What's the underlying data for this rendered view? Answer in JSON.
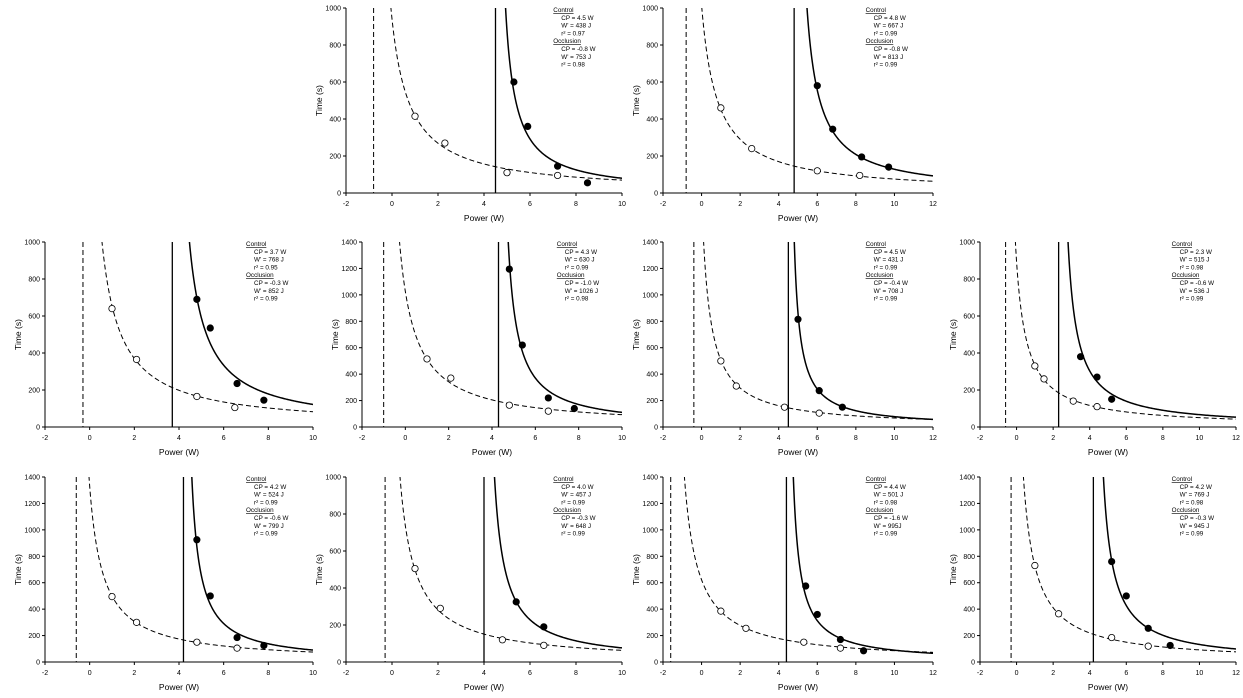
{
  "chart_data": [
    {
      "type": "scatter",
      "xlabel": "Power (W)",
      "ylabel": "Time (s)",
      "xlim": [
        -2,
        10
      ],
      "ylim": [
        0,
        1000
      ],
      "xticks": [
        -2,
        0,
        2,
        4,
        6,
        8,
        10
      ],
      "yticks": [
        0,
        200,
        400,
        600,
        800,
        1000
      ],
      "annotation": {
        "control_title": "Control",
        "control": [
          "CP = 4.5 W",
          "W' = 438 J",
          "r² = 0.97"
        ],
        "occlusion_title": "Occlusion",
        "occlusion": [
          "CP = -0.8 W",
          "W' = 753 J",
          "r² = 0.98"
        ]
      },
      "series": [
        {
          "name": "Control",
          "style": "filled",
          "fit": {
            "cp": 4.5,
            "w": 438
          },
          "x": [
            5.3,
            5.9,
            7.2,
            8.5
          ],
          "y": [
            600,
            360,
            145,
            55
          ]
        },
        {
          "name": "Occlusion",
          "style": "open",
          "fit": {
            "cp": -0.8,
            "w": 753
          },
          "x": [
            1.0,
            2.3,
            5.0,
            7.2
          ],
          "y": [
            415,
            270,
            110,
            95
          ]
        }
      ]
    },
    {
      "type": "scatter",
      "xlabel": "Power (W)",
      "ylabel": "Time (s)",
      "xlim": [
        -2,
        12
      ],
      "ylim": [
        0,
        1000
      ],
      "xticks": [
        -2,
        0,
        2,
        4,
        6,
        8,
        10,
        12
      ],
      "yticks": [
        0,
        200,
        400,
        600,
        800,
        1000
      ],
      "annotation": {
        "control_title": "Control",
        "control": [
          "CP = 4.8 W",
          "W' = 667 J",
          "r² = 0.99"
        ],
        "occlusion_title": "Occlusion",
        "occlusion": [
          "CP = -0.8 W",
          "W' = 813 J",
          "r² = 0.99"
        ]
      },
      "series": [
        {
          "name": "Control",
          "style": "filled",
          "fit": {
            "cp": 4.8,
            "w": 667
          },
          "x": [
            6.0,
            6.8,
            8.3,
            9.7
          ],
          "y": [
            580,
            345,
            195,
            140
          ]
        },
        {
          "name": "Occlusion",
          "style": "open",
          "fit": {
            "cp": -0.8,
            "w": 813
          },
          "x": [
            1.0,
            2.6,
            6.0,
            8.2
          ],
          "y": [
            460,
            240,
            120,
            95
          ]
        }
      ]
    },
    {
      "type": "scatter",
      "xlabel": "Power (W)",
      "ylabel": "Time (s)",
      "xlim": [
        -2,
        10
      ],
      "ylim": [
        0,
        1000
      ],
      "xticks": [
        -2,
        0,
        2,
        4,
        6,
        8,
        10
      ],
      "yticks": [
        0,
        200,
        400,
        600,
        800,
        1000
      ],
      "annotation": {
        "control_title": "Control",
        "control": [
          "CP = 3.7 W",
          "W' = 768 J",
          "r² = 0.95"
        ],
        "occlusion_title": "Occlusion",
        "occlusion": [
          "CP = -0.3 W",
          "W' = 852 J",
          "r² = 0.99"
        ]
      },
      "series": [
        {
          "name": "Control",
          "style": "filled",
          "fit": {
            "cp": 3.7,
            "w": 768
          },
          "x": [
            4.8,
            5.4,
            6.6,
            7.8
          ],
          "y": [
            690,
            535,
            235,
            145
          ]
        },
        {
          "name": "Occlusion",
          "style": "open",
          "fit": {
            "cp": -0.3,
            "w": 852
          },
          "x": [
            1.0,
            2.1,
            4.8,
            6.5
          ],
          "y": [
            640,
            365,
            165,
            105
          ]
        }
      ]
    },
    {
      "type": "scatter",
      "xlabel": "Power (W)",
      "ylabel": "Time (s)",
      "xlim": [
        -2,
        10
      ],
      "ylim": [
        0,
        1400
      ],
      "xticks": [
        -2,
        0,
        2,
        4,
        6,
        8,
        10
      ],
      "yticks": [
        0,
        200,
        400,
        600,
        800,
        1000,
        1200,
        1400
      ],
      "annotation": {
        "control_title": "Control",
        "control": [
          "CP = 4.3 W",
          "W' = 630 J",
          "r² = 0.99"
        ],
        "occlusion_title": "Occlusion",
        "occlusion": [
          "CP = -1.0 W",
          "W' = 1026 J",
          "r² = 0.98"
        ]
      },
      "series": [
        {
          "name": "Control",
          "style": "filled",
          "fit": {
            "cp": 4.3,
            "w": 630
          },
          "x": [
            4.8,
            5.4,
            6.6,
            7.8
          ],
          "y": [
            1195,
            620,
            220,
            140
          ]
        },
        {
          "name": "Occlusion",
          "style": "open",
          "fit": {
            "cp": -1.0,
            "w": 1026
          },
          "x": [
            1.0,
            2.1,
            4.8,
            6.6
          ],
          "y": [
            515,
            370,
            165,
            120
          ]
        }
      ]
    },
    {
      "type": "scatter",
      "xlabel": "Power (W)",
      "ylabel": "Time (s)",
      "xlim": [
        -2,
        12
      ],
      "ylim": [
        0,
        1400
      ],
      "xticks": [
        -2,
        0,
        2,
        4,
        6,
        8,
        10,
        12
      ],
      "yticks": [
        0,
        200,
        400,
        600,
        800,
        1000,
        1200,
        1400
      ],
      "annotation": {
        "control_title": "Control",
        "control": [
          "CP = 4.5 W",
          "W' = 431 J",
          "r² = 0.99"
        ],
        "occlusion_title": "Occlusion",
        "occlusion": [
          "CP = -0.4 W",
          "W' = 708 J",
          "r² = 0.99"
        ]
      },
      "series": [
        {
          "name": "Control",
          "style": "filled",
          "fit": {
            "cp": 4.5,
            "w": 431
          },
          "x": [
            5.0,
            6.1,
            7.3
          ],
          "y": [
            815,
            275,
            150
          ]
        },
        {
          "name": "Occlusion",
          "style": "open",
          "fit": {
            "cp": -0.4,
            "w": 708
          },
          "x": [
            1.0,
            1.8,
            4.3,
            6.1
          ],
          "y": [
            500,
            310,
            150,
            105
          ]
        }
      ]
    },
    {
      "type": "scatter",
      "xlabel": "Power (W)",
      "ylabel": "Time (s)",
      "xlim": [
        -2,
        12
      ],
      "ylim": [
        0,
        1000
      ],
      "xticks": [
        -2,
        0,
        2,
        4,
        6,
        8,
        10,
        12
      ],
      "yticks": [
        0,
        200,
        400,
        600,
        800,
        1000
      ],
      "annotation": {
        "control_title": "Control",
        "control": [
          "CP = 2.3 W",
          "W' = 515 J",
          "r² = 0.98"
        ],
        "occlusion_title": "Occlusion",
        "occlusion": [
          "CP = -0.6 W",
          "W' = 536 J",
          "r² = 0.99"
        ]
      },
      "series": [
        {
          "name": "Control",
          "style": "filled",
          "fit": {
            "cp": 2.3,
            "w": 515
          },
          "x": [
            3.5,
            4.4,
            5.2
          ],
          "y": [
            380,
            270,
            150
          ]
        },
        {
          "name": "Occlusion",
          "style": "open",
          "fit": {
            "cp": -0.6,
            "w": 536
          },
          "x": [
            1.0,
            1.5,
            3.1,
            4.4
          ],
          "y": [
            330,
            260,
            140,
            110
          ]
        }
      ]
    },
    {
      "type": "scatter",
      "xlabel": "Power (W)",
      "ylabel": "Time (s)",
      "xlim": [
        -2,
        10
      ],
      "ylim": [
        0,
        1400
      ],
      "xticks": [
        -2,
        0,
        2,
        4,
        6,
        8,
        10
      ],
      "yticks": [
        0,
        200,
        400,
        600,
        800,
        1000,
        1200,
        1400
      ],
      "annotation": {
        "control_title": "Control",
        "control": [
          "CP = 4.2 W",
          "W' = 524 J",
          "r² = 0.99"
        ],
        "occlusion_title": "Occlusion",
        "occlusion": [
          "CP = -0.6 W",
          "W' = 799 J",
          "r² = 0.99"
        ]
      },
      "series": [
        {
          "name": "Control",
          "style": "filled",
          "fit": {
            "cp": 4.2,
            "w": 524
          },
          "x": [
            4.8,
            5.4,
            6.6,
            7.8
          ],
          "y": [
            925,
            500,
            185,
            125
          ]
        },
        {
          "name": "Occlusion",
          "style": "open",
          "fit": {
            "cp": -0.6,
            "w": 799
          },
          "x": [
            1.0,
            2.1,
            4.8,
            6.6
          ],
          "y": [
            495,
            300,
            150,
            105
          ]
        }
      ]
    },
    {
      "type": "scatter",
      "xlabel": "Power (W)",
      "ylabel": "Time (s)",
      "xlim": [
        -2,
        10
      ],
      "ylim": [
        0,
        1000
      ],
      "xticks": [
        -2,
        0,
        2,
        4,
        6,
        8,
        10
      ],
      "yticks": [
        0,
        200,
        400,
        600,
        800,
        1000
      ],
      "annotation": {
        "control_title": "Control",
        "control": [
          "CP = 4.0 W",
          "W' = 457 J",
          "r² = 0.99"
        ],
        "occlusion_title": "Occlusion",
        "occlusion": [
          "CP = -0.3 W",
          "W' = 648 J",
          "r² = 0.99"
        ]
      },
      "series": [
        {
          "name": "Control",
          "style": "filled",
          "fit": {
            "cp": 4.0,
            "w": 457
          },
          "x": [
            5.4,
            6.6
          ],
          "y": [
            325,
            190
          ]
        },
        {
          "name": "Occlusion",
          "style": "open",
          "fit": {
            "cp": -0.3,
            "w": 648
          },
          "x": [
            1.0,
            2.1,
            4.8,
            6.6
          ],
          "y": [
            505,
            290,
            120,
            90
          ]
        }
      ]
    },
    {
      "type": "scatter",
      "xlabel": "Power (W)",
      "ylabel": "Time (s)",
      "xlim": [
        -2,
        12
      ],
      "ylim": [
        0,
        1400
      ],
      "xticks": [
        -2,
        0,
        2,
        4,
        6,
        8,
        10,
        12
      ],
      "yticks": [
        0,
        200,
        400,
        600,
        800,
        1000,
        1200,
        1400
      ],
      "annotation": {
        "control_title": "Control",
        "control": [
          "CP = 4.4 W",
          "W' = 501 J",
          "r² = 0.98"
        ],
        "occlusion_title": "Occlusion",
        "occlusion": [
          "CP = -1.6 W",
          "W' = 995J",
          "r² = 0.99"
        ]
      },
      "series": [
        {
          "name": "Control",
          "style": "filled",
          "fit": {
            "cp": 4.4,
            "w": 501
          },
          "x": [
            5.4,
            6.0,
            7.2,
            8.4
          ],
          "y": [
            575,
            360,
            170,
            85
          ]
        },
        {
          "name": "Occlusion",
          "style": "open",
          "fit": {
            "cp": -1.6,
            "w": 995
          },
          "x": [
            1.0,
            2.3,
            5.3,
            7.2
          ],
          "y": [
            385,
            255,
            150,
            105
          ]
        }
      ]
    },
    {
      "type": "scatter",
      "xlabel": "Power (W)",
      "ylabel": "Time (s)",
      "xlim": [
        -2,
        12
      ],
      "ylim": [
        0,
        1400
      ],
      "xticks": [
        -2,
        0,
        2,
        4,
        6,
        8,
        10,
        12
      ],
      "yticks": [
        0,
        200,
        400,
        600,
        800,
        1000,
        1200,
        1400
      ],
      "annotation": {
        "control_title": "Control",
        "control": [
          "CP = 4.2 W",
          "W' = 769 J",
          "r² = 0.98"
        ],
        "occlusion_title": "Occlusion",
        "occlusion": [
          "CP = -0.3 W",
          "W' = 945 J",
          "r² = 0.99"
        ]
      },
      "series": [
        {
          "name": "Control",
          "style": "filled",
          "fit": {
            "cp": 4.2,
            "w": 769
          },
          "x": [
            5.2,
            6.0,
            7.2,
            8.4
          ],
          "y": [
            760,
            500,
            255,
            125
          ]
        },
        {
          "name": "Occlusion",
          "style": "open",
          "fit": {
            "cp": -0.3,
            "w": 945
          },
          "x": [
            1.0,
            2.3,
            5.2,
            7.2
          ],
          "y": [
            730,
            365,
            185,
            120
          ]
        }
      ]
    }
  ]
}
